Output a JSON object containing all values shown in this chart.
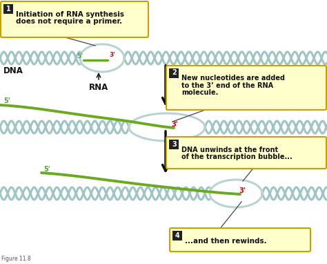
{
  "bg_color": "#ffffff",
  "dna_color": "#9ec4c4",
  "rna_color": "#6aaa20",
  "bubble_color": "#b8d4d0",
  "box_bg": "#ffffcc",
  "box_border": "#c8a000",
  "num_bg": "#222222",
  "num_color": "#ffffff",
  "prime3_color": "#cc0000",
  "prime5_color": "#4aaa20",
  "arrow_color": "#111111",
  "text_color": "#111111",
  "text1_line1": "Initiation of RNA synthesis",
  "text1_line2": "does not require a primer.",
  "text2_line1": "New nucleotides are added",
  "text2_line2": "to the 3’ end of the RNA",
  "text2_line3": "molecule.",
  "text3_line1": "DNA unwinds at the front",
  "text3_line2": "of the transcription bubble...",
  "text4_line1": "...and then rewinds.",
  "dna_label": "DNA",
  "rna_label": "RNA",
  "figure_label": "Figure 11.8"
}
